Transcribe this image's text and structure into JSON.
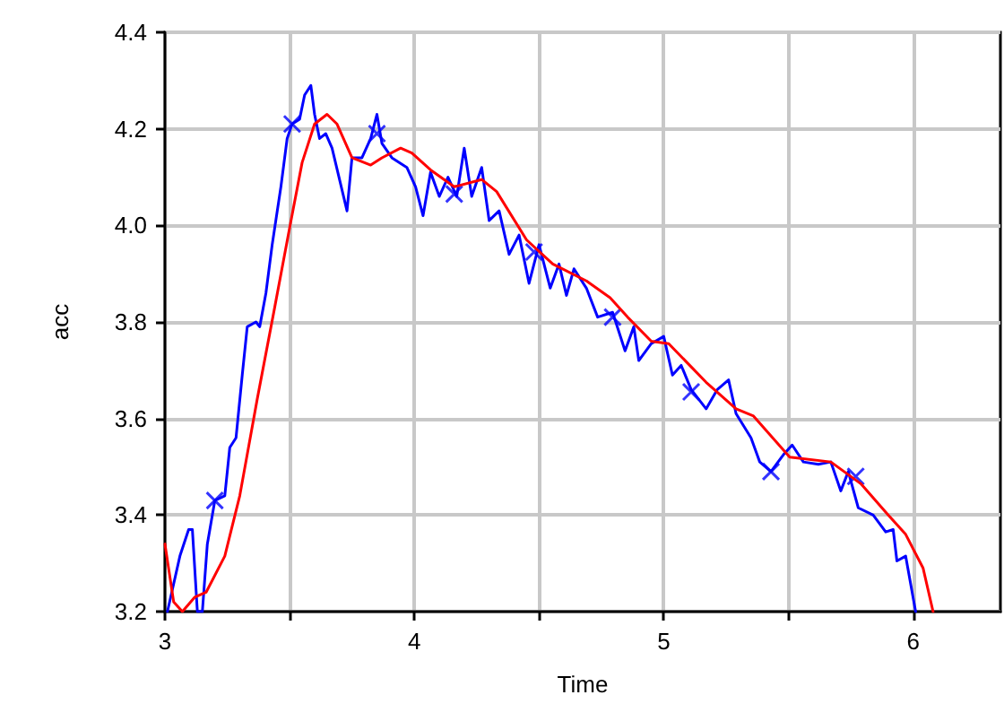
{
  "chart_data": {
    "type": "line",
    "xlabel": "Time",
    "ylabel": "acc",
    "xlim": [
      3,
      6.35
    ],
    "ylim": [
      3.2,
      4.4
    ],
    "xticks": [
      3,
      {
        "value": 3.5,
        "label": null
      },
      4,
      {
        "value": 4.5,
        "label": null
      },
      5,
      {
        "value": 5.5,
        "label": null
      },
      6
    ],
    "yticks": [
      3.2,
      3.4,
      3.6,
      3.8,
      {
        "value": 4,
        "label": "4.0"
      },
      4.2,
      4.4
    ],
    "grid": true,
    "line_style": "solid",
    "marker": "none",
    "series": [
      {
        "color": "#0000ff",
        "x": [
          3.01,
          3.06,
          3.095,
          3.11,
          3.13,
          3.15,
          3.17,
          3.2,
          3.24,
          3.26,
          3.285,
          3.31,
          3.33,
          3.365,
          3.38,
          3.405,
          3.43,
          3.465,
          3.49,
          3.51,
          3.54,
          3.56,
          3.585,
          3.6,
          3.62,
          3.645,
          3.67,
          3.73,
          3.75,
          3.79,
          3.825,
          3.85,
          3.87,
          3.91,
          3.97,
          4.005,
          4.035,
          4.065,
          4.1,
          4.135,
          4.17,
          4.2,
          4.23,
          4.27,
          4.3,
          4.34,
          4.38,
          4.42,
          4.46,
          4.5,
          4.545,
          4.58,
          4.61,
          4.64,
          4.69,
          4.735,
          4.795,
          4.845,
          4.88,
          4.9,
          4.95,
          5.0,
          5.035,
          5.07,
          5.11,
          5.17,
          5.215,
          5.26,
          5.29,
          5.35,
          5.385,
          5.43,
          5.48,
          5.515,
          5.56,
          5.62,
          5.67,
          5.71,
          5.74,
          5.78,
          5.84,
          5.89,
          5.92,
          5.935,
          5.97,
          6.01
        ],
        "values": [
          3.2,
          3.315,
          3.37,
          3.37,
          3.2,
          3.2,
          3.34,
          3.43,
          3.44,
          3.54,
          3.56,
          3.69,
          3.79,
          3.8,
          3.79,
          3.86,
          3.96,
          4.08,
          4.18,
          4.21,
          4.22,
          4.27,
          4.29,
          4.23,
          4.18,
          4.19,
          4.16,
          4.03,
          4.14,
          4.14,
          4.18,
          4.23,
          4.17,
          4.14,
          4.12,
          4.08,
          4.02,
          4.11,
          4.06,
          4.1,
          4.06,
          4.16,
          4.06,
          4.12,
          4.01,
          4.03,
          3.94,
          3.98,
          3.88,
          3.96,
          3.87,
          3.92,
          3.855,
          3.91,
          3.87,
          3.81,
          3.82,
          3.74,
          3.79,
          3.72,
          3.755,
          3.77,
          3.69,
          3.71,
          3.66,
          3.62,
          3.66,
          3.68,
          3.61,
          3.56,
          3.51,
          3.49,
          3.525,
          3.545,
          3.51,
          3.505,
          3.51,
          3.45,
          3.49,
          3.415,
          3.4,
          3.365,
          3.37,
          3.305,
          3.315,
          3.2
        ]
      },
      {
        "color": "#0000ff",
        "type": "scatter",
        "marker": "cross",
        "x": [
          3.2,
          3.51,
          3.85,
          4.16,
          4.48,
          4.795,
          5.11,
          5.43,
          5.77
        ],
        "values": [
          3.43,
          4.21,
          4.19,
          4.065,
          3.945,
          3.81,
          3.655,
          3.49,
          3.48
        ]
      },
      {
        "color": "#ff0000",
        "x": [
          3.0,
          3.035,
          3.07,
          3.12,
          3.165,
          3.24,
          3.3,
          3.37,
          3.44,
          3.5,
          3.55,
          3.6,
          3.65,
          3.69,
          3.75,
          3.825,
          3.87,
          3.945,
          3.99,
          4.065,
          4.16,
          4.27,
          4.33,
          4.45,
          4.555,
          4.69,
          4.785,
          4.855,
          4.95,
          5.02,
          5.17,
          5.29,
          5.36,
          5.505,
          5.67,
          5.79,
          5.9,
          5.97,
          6.04,
          6.08
        ],
        "values": [
          3.34,
          3.22,
          3.2,
          3.23,
          3.24,
          3.315,
          3.44,
          3.64,
          3.83,
          3.995,
          4.13,
          4.21,
          4.23,
          4.21,
          4.14,
          4.125,
          4.14,
          4.16,
          4.15,
          4.115,
          4.08,
          4.095,
          4.07,
          3.97,
          3.92,
          3.885,
          3.85,
          3.81,
          3.76,
          3.755,
          3.675,
          3.62,
          3.605,
          3.52,
          3.51,
          3.465,
          3.4,
          3.36,
          3.29,
          3.2
        ]
      }
    ]
  }
}
